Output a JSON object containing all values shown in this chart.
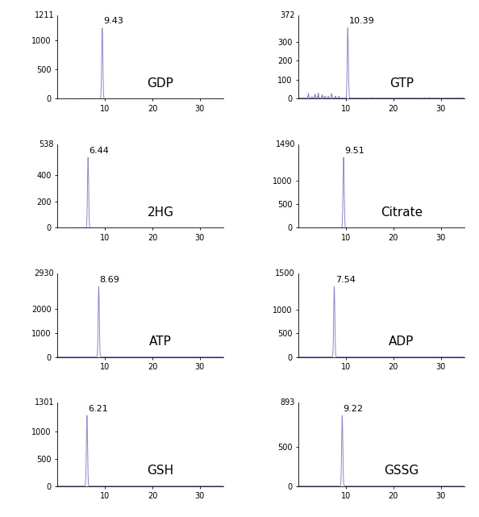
{
  "subplots": [
    {
      "name": "GDP",
      "peak_time": 9.43,
      "peak_height": 1211,
      "yticks": [
        0,
        500,
        1000,
        1211
      ],
      "ymax": 1211,
      "noise_level": 0,
      "row": 0,
      "col": 0,
      "gtp_noise": false
    },
    {
      "name": "GTP",
      "peak_time": 10.39,
      "peak_height": 372,
      "yticks": [
        0,
        100,
        200,
        300,
        372
      ],
      "ymax": 372,
      "noise_level": 0,
      "row": 0,
      "col": 1,
      "gtp_noise": true
    },
    {
      "name": "2HG",
      "peak_time": 6.44,
      "peak_height": 538,
      "yticks": [
        0,
        200,
        400,
        538
      ],
      "ymax": 538,
      "noise_level": 0,
      "row": 1,
      "col": 0,
      "gtp_noise": false
    },
    {
      "name": "Citrate",
      "peak_time": 9.51,
      "peak_height": 1490,
      "yticks": [
        0,
        500,
        1000,
        1490
      ],
      "ymax": 1490,
      "noise_level": 0,
      "row": 1,
      "col": 1,
      "gtp_noise": false
    },
    {
      "name": "ATP",
      "peak_time": 8.69,
      "peak_height": 2930,
      "yticks": [
        0,
        1000,
        2000,
        2930
      ],
      "ymax": 2930,
      "noise_level": 0,
      "row": 2,
      "col": 0,
      "gtp_noise": false
    },
    {
      "name": "ADP",
      "peak_time": 7.54,
      "peak_height": 1500,
      "yticks": [
        0,
        500,
        1000,
        1500
      ],
      "ymax": 1500,
      "noise_level": 0,
      "row": 2,
      "col": 1,
      "gtp_noise": false
    },
    {
      "name": "GSH",
      "peak_time": 6.21,
      "peak_height": 1301,
      "yticks": [
        0,
        500,
        1000,
        1301
      ],
      "ymax": 1301,
      "noise_level": 0,
      "row": 3,
      "col": 0,
      "gtp_noise": false
    },
    {
      "name": "GSSG",
      "peak_time": 9.22,
      "peak_height": 893,
      "yticks": [
        0,
        500,
        893
      ],
      "ymax": 893,
      "noise_level": 0,
      "row": 3,
      "col": 1,
      "gtp_noise": false
    }
  ],
  "xmin": 0,
  "xmax": 35,
  "xticks": [
    10,
    20,
    30
  ],
  "line_color": "#8888cc",
  "bg_color": "#ffffff",
  "tick_fontsize": 7,
  "peak_label_fontsize": 8,
  "name_fontsize": 11
}
